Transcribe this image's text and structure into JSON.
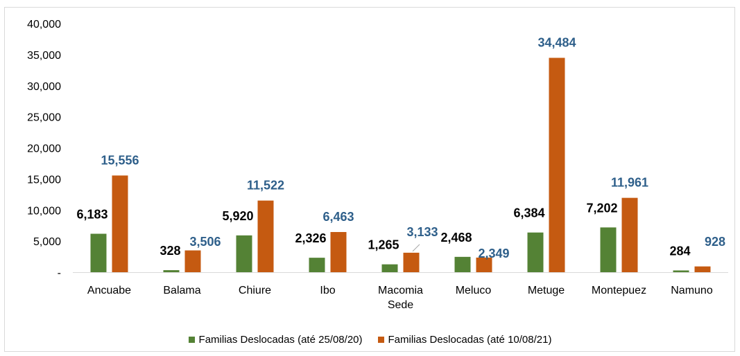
{
  "colors": {
    "series_a": "#548235",
    "series_b": "#c55a11",
    "label_b": "#2e5f8a"
  },
  "chart_data": {
    "type": "bar",
    "categories": [
      "Ancuabe",
      "Balama",
      "Chiure",
      "Ibo",
      "Macomia Sede",
      "Meluco",
      "Metuge",
      "Montepuez",
      "Namuno"
    ],
    "category_lines": [
      [
        "Ancuabe"
      ],
      [
        "Balama"
      ],
      [
        "Chiure"
      ],
      [
        "Ibo"
      ],
      [
        "Macomia",
        "Sede"
      ],
      [
        "Meluco"
      ],
      [
        "Metuge"
      ],
      [
        "Montepuez"
      ],
      [
        "Namuno"
      ]
    ],
    "series": [
      {
        "name": "Familias Deslocadas (até 25/08/20)",
        "values": [
          6183,
          328,
          5920,
          2326,
          1265,
          2468,
          6384,
          7202,
          284
        ],
        "labels": [
          "6,183",
          "328",
          "5,920",
          "2,326",
          "1,265",
          "2,468",
          "6,384",
          "7,202",
          "284"
        ]
      },
      {
        "name": "Familias Deslocadas (até 10/08/21)",
        "values": [
          15556,
          3506,
          11522,
          6463,
          3133,
          2349,
          34484,
          11961,
          928
        ],
        "labels": [
          "15,556",
          "3,506",
          "11,522",
          "6,463",
          "3,133",
          "2,349",
          "34,484",
          "11,961",
          "928"
        ]
      }
    ],
    "y_ticks": [
      {
        "value": 40000,
        "label": "40,000"
      },
      {
        "value": 35000,
        "label": "35,000"
      },
      {
        "value": 30000,
        "label": "30,000"
      },
      {
        "value": 25000,
        "label": "25,000"
      },
      {
        "value": 20000,
        "label": "20,000"
      },
      {
        "value": 15000,
        "label": "15,000"
      },
      {
        "value": 10000,
        "label": "10,000"
      },
      {
        "value": 5000,
        "label": "5,000"
      },
      {
        "value": 0,
        "label": "-"
      }
    ],
    "ylim": [
      0,
      40000
    ],
    "grid": false,
    "legend_position": "bottom",
    "title": "",
    "xlabel": "",
    "ylabel": ""
  }
}
